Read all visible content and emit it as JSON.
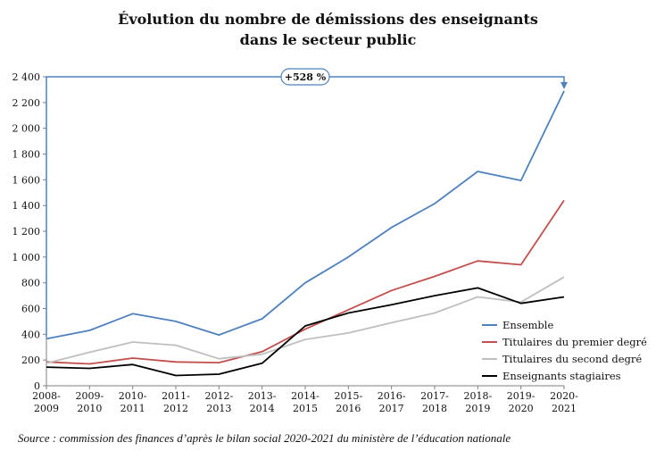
{
  "title_line1": "Évolution du nombre de démissions des enseignants",
  "title_line2": "dans le secteur public",
  "source": "Source : commission des finances d’après le bilan social 2020-2021 du ministère de l’éducation nationale",
  "chart_data": {
    "type": "line",
    "categories": [
      "2008-2009",
      "2009-2010",
      "2010-2011",
      "2011-2012",
      "2012-2013",
      "2013-2014",
      "2014-2015",
      "2015-2016",
      "2016-2017",
      "2017-2018",
      "2018-2019",
      "2019-2020",
      "2020-2021"
    ],
    "category_lines": [
      [
        "2008-",
        "2009"
      ],
      [
        "2009-",
        "2010"
      ],
      [
        "2010-",
        "2011"
      ],
      [
        "2011-",
        "2012"
      ],
      [
        "2012-",
        "2013"
      ],
      [
        "2013-",
        "2014"
      ],
      [
        "2014-",
        "2015"
      ],
      [
        "2015-",
        "2016"
      ],
      [
        "2016-",
        "2017"
      ],
      [
        "2017-",
        "2018"
      ],
      [
        "2018-",
        "2019"
      ],
      [
        "2019-",
        "2020"
      ],
      [
        "2020-",
        "2021"
      ]
    ],
    "y_ticks": [
      "0",
      "200",
      "400",
      "600",
      "800",
      "1 000",
      "1 200",
      "1 400",
      "1 600",
      "1 800",
      "2 000",
      "2 200",
      "2 400"
    ],
    "ylim": [
      0,
      2400
    ],
    "grid": false,
    "legend_position": "right",
    "annotation": "+528 %",
    "series": [
      {
        "name": "Ensemble",
        "color": "#4f81bd",
        "values": [
          365,
          430,
          560,
          500,
          395,
          520,
          800,
          1000,
          1230,
          1415,
          1665,
          1595,
          2290
        ]
      },
      {
        "name": "Titulaires du premier degré",
        "color": "#c0504d",
        "values": [
          185,
          170,
          215,
          185,
          180,
          265,
          440,
          590,
          740,
          850,
          970,
          940,
          1440
        ]
      },
      {
        "name": "Titulaires du second degré",
        "color": "#bfbfbf",
        "values": [
          175,
          260,
          340,
          315,
          210,
          245,
          360,
          410,
          490,
          565,
          690,
          650,
          845
        ]
      },
      {
        "name": "Enseignants stagiaires",
        "color": "#000000",
        "values": [
          145,
          135,
          165,
          80,
          90,
          175,
          465,
          565,
          630,
          700,
          760,
          640,
          690
        ]
      }
    ]
  }
}
